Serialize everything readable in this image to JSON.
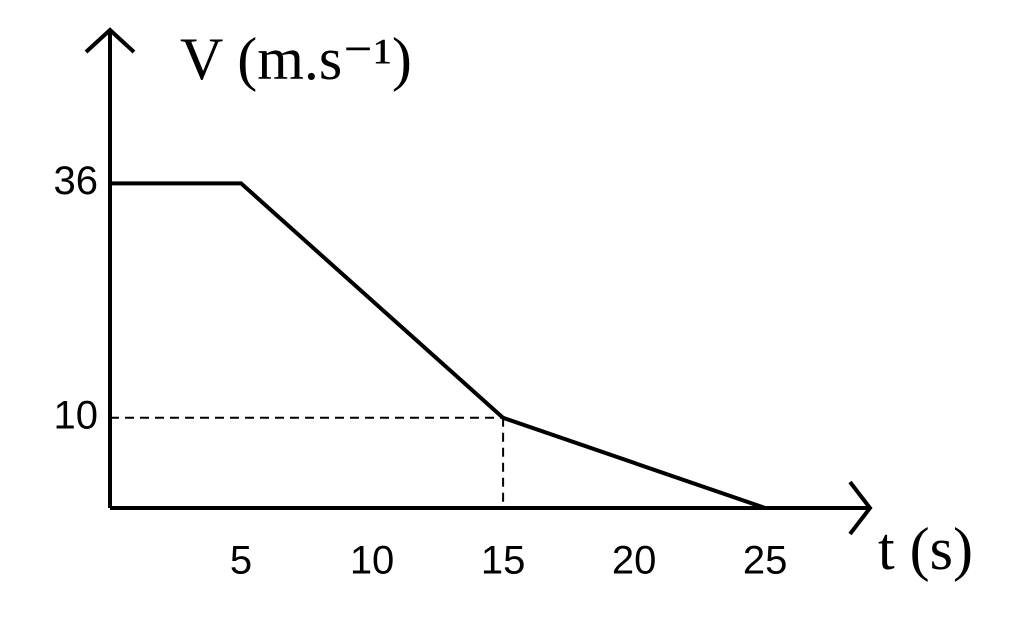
{
  "chart_data": {
    "type": "line",
    "xlabel": "t (s)",
    "ylabel": "V (m.s⁻¹)",
    "x": [
      0,
      5,
      15,
      25
    ],
    "series": [
      {
        "color": "#000000",
        "values": [
          36,
          36,
          10,
          0
        ]
      }
    ],
    "xlim": [
      0,
      29
    ],
    "ylim": [
      0,
      53
    ],
    "xticks": [
      5,
      10,
      15,
      20,
      25
    ],
    "yticks": [
      10,
      36
    ],
    "guide_point": 2,
    "grid": false
  }
}
